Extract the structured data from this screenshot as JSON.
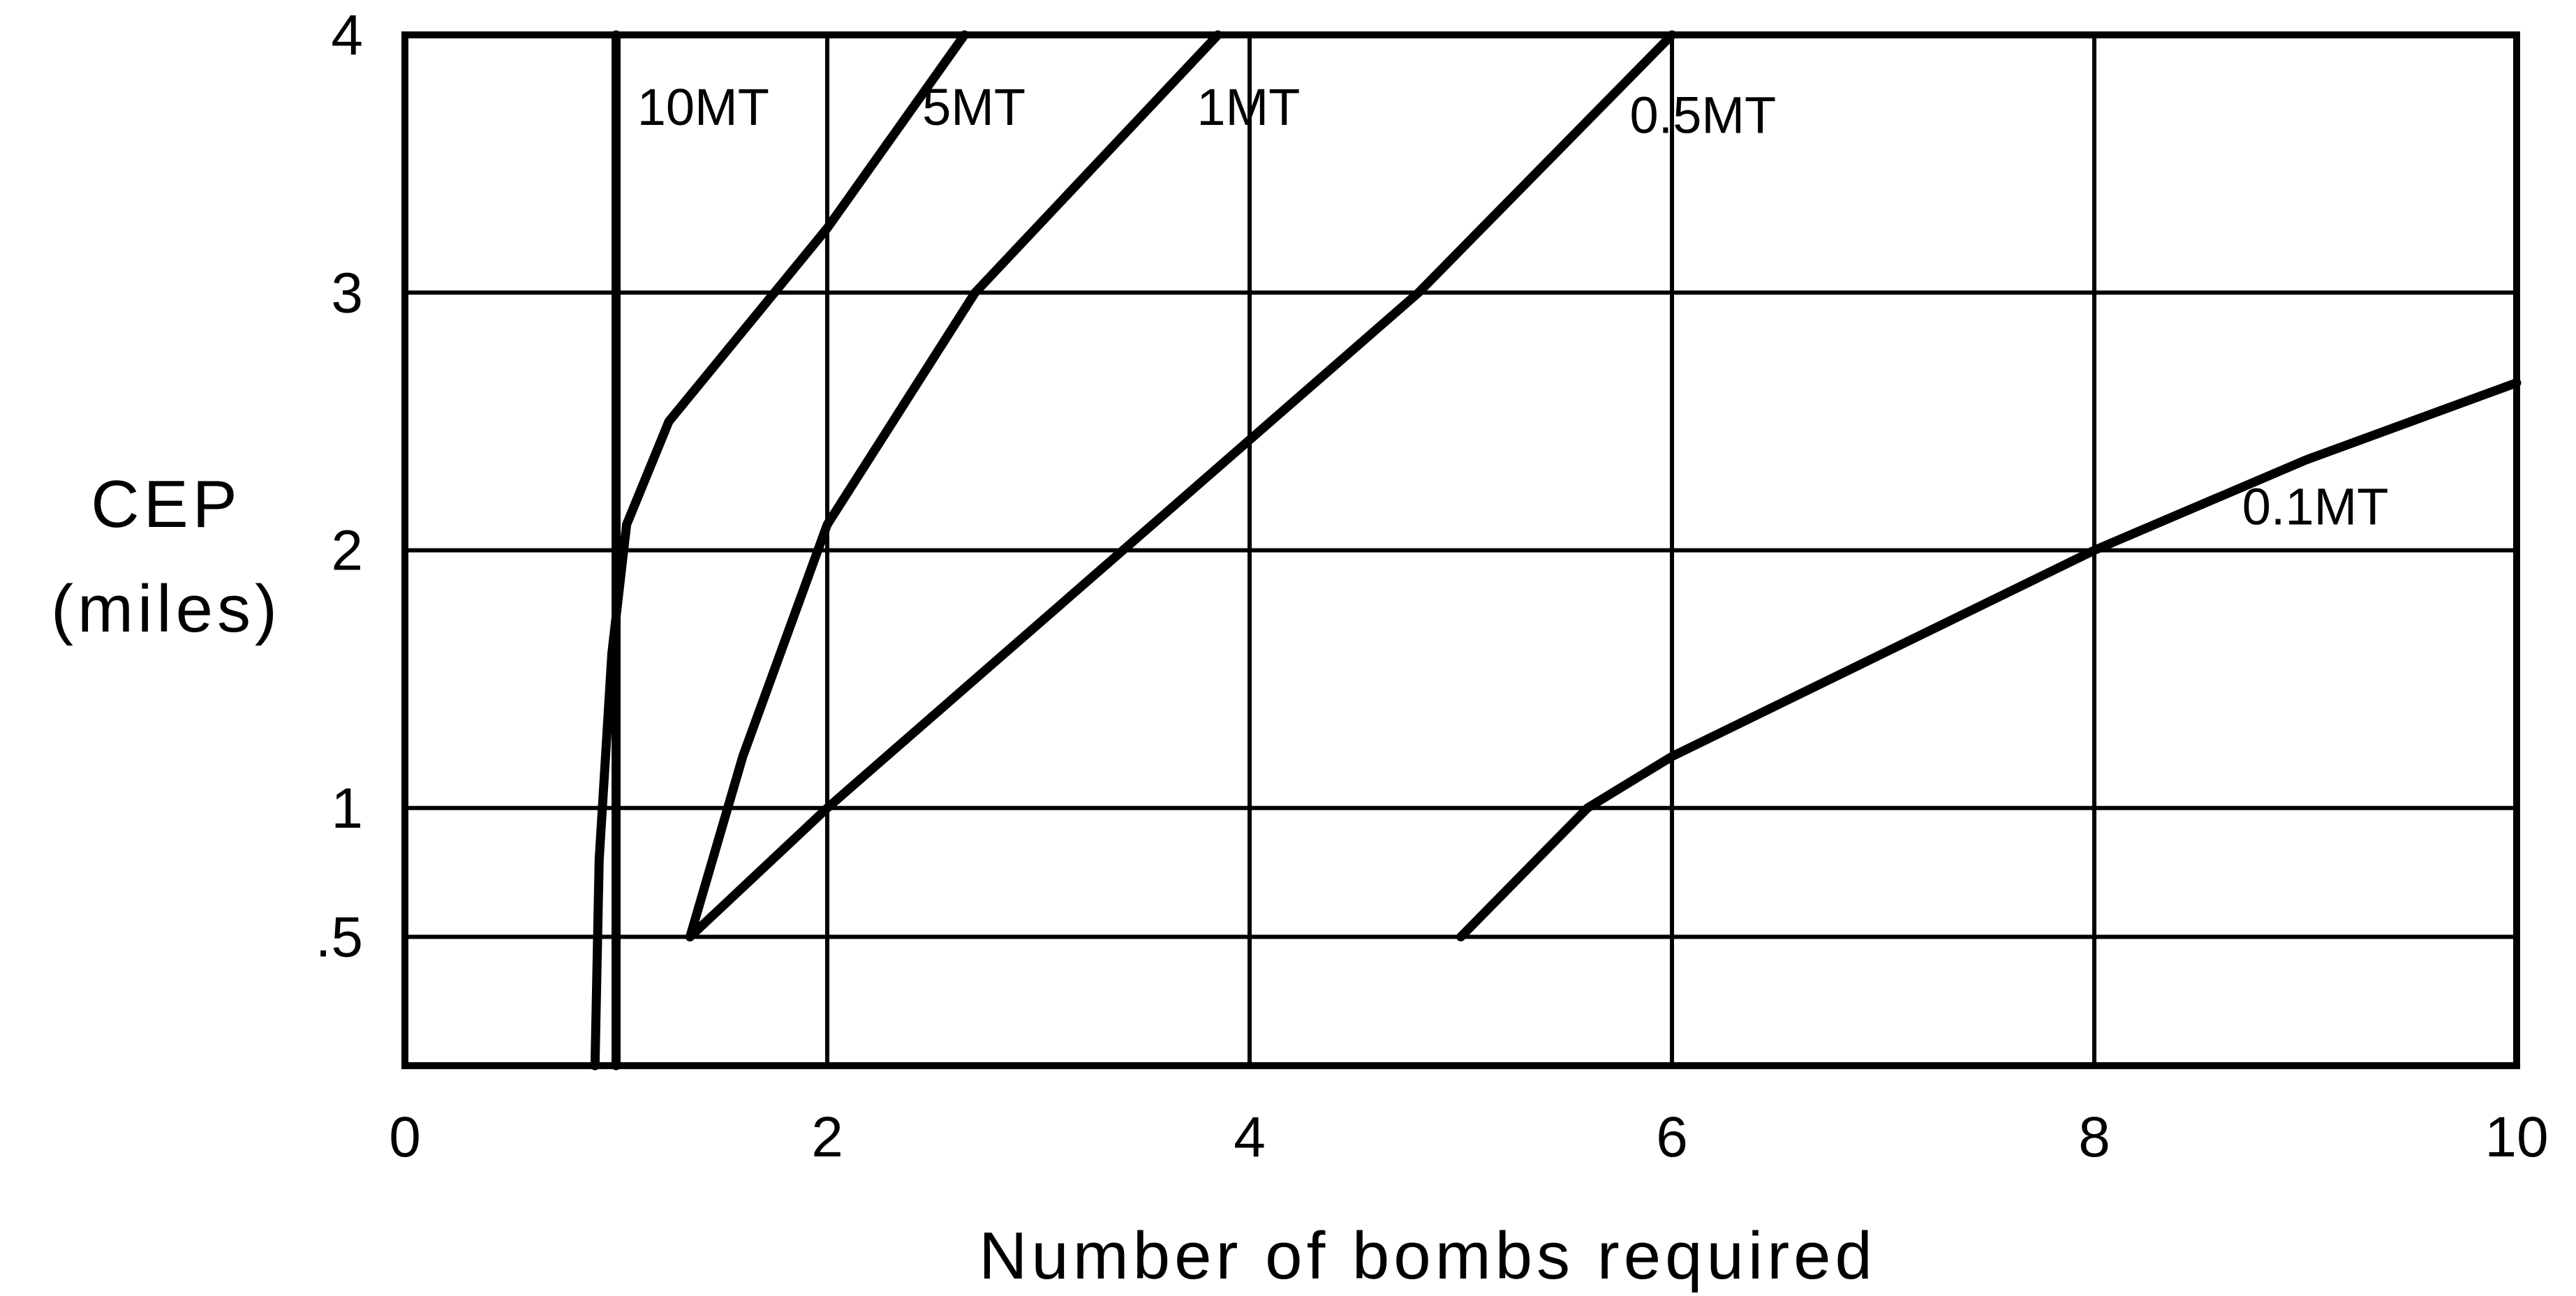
{
  "chart_data": {
    "type": "line",
    "xlabel": "Number of bombs required",
    "ylabel": [
      "CEP",
      "(miles)"
    ],
    "xlim": [
      0,
      10
    ],
    "ylim": [
      0,
      4
    ],
    "grid": true,
    "x_ticks": [
      {
        "value": 0,
        "label": "0"
      },
      {
        "value": 2,
        "label": "2"
      },
      {
        "value": 4,
        "label": "4"
      },
      {
        "value": 6,
        "label": "6"
      },
      {
        "value": 8,
        "label": "8"
      },
      {
        "value": 10,
        "label": "10"
      }
    ],
    "y_ticks": [
      {
        "value": 0.5,
        "label": ".5"
      },
      {
        "value": 1,
        "label": "1"
      },
      {
        "value": 2,
        "label": "2"
      },
      {
        "value": 3,
        "label": "3"
      },
      {
        "value": 4,
        "label": "4"
      }
    ],
    "series": [
      {
        "name": "10MT",
        "points": [
          [
            1.0,
            0.0
          ],
          [
            1.0,
            1.0
          ],
          [
            1.0,
            2.0
          ],
          [
            1.0,
            3.0
          ],
          [
            1.0,
            4.0
          ]
        ]
      },
      {
        "name": "5MT",
        "points": [
          [
            0.9,
            0.0
          ],
          [
            0.92,
            0.8
          ],
          [
            0.98,
            1.6
          ],
          [
            1.05,
            2.1
          ],
          [
            1.25,
            2.5
          ],
          [
            1.6,
            2.85
          ],
          [
            2.0,
            3.25
          ],
          [
            2.65,
            4.0
          ]
        ]
      },
      {
        "name": "1MT",
        "points": [
          [
            1.35,
            0.5
          ],
          [
            1.6,
            1.2
          ],
          [
            2.0,
            2.1
          ],
          [
            2.7,
            3.0
          ],
          [
            3.85,
            4.0
          ]
        ]
      },
      {
        "name": "0.5MT",
        "points": [
          [
            1.35,
            0.5
          ],
          [
            2.0,
            1.0
          ],
          [
            3.4,
            2.0
          ],
          [
            4.8,
            3.0
          ],
          [
            6.0,
            4.0
          ]
        ]
      },
      {
        "name": "0.1MT",
        "points": [
          [
            5.0,
            0.5
          ],
          [
            5.6,
            1.0
          ],
          [
            6.0,
            1.2
          ],
          [
            7.0,
            1.6
          ],
          [
            8.0,
            2.0
          ],
          [
            9.0,
            2.35
          ],
          [
            10.0,
            2.65
          ]
        ]
      }
    ],
    "series_labels": [
      {
        "text": "10MT",
        "x": 1.1,
        "y": 3.65
      },
      {
        "text": "5MT",
        "x": 2.45,
        "y": 3.65
      },
      {
        "text": "1MT",
        "x": 3.75,
        "y": 3.65
      },
      {
        "text": "0.5MT",
        "x": 5.8,
        "y": 3.62
      },
      {
        "text": "0.1MT",
        "x": 8.7,
        "y": 2.1
      }
    ]
  }
}
